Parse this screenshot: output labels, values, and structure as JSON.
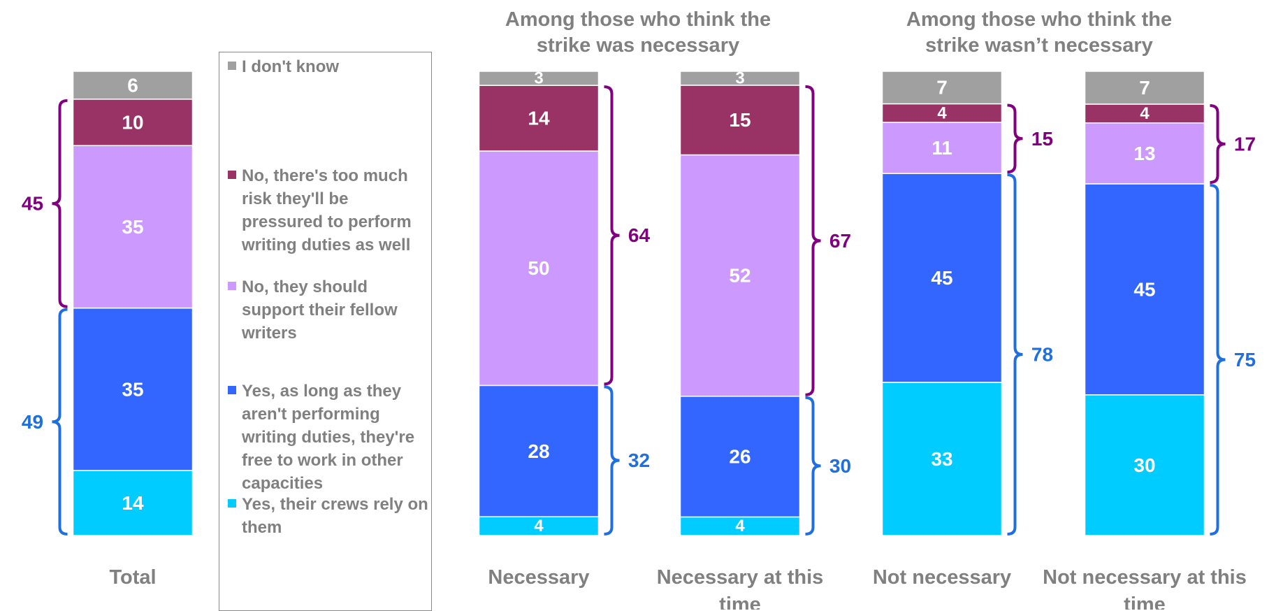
{
  "chart_data": {
    "type": "bar",
    "stacked": true,
    "orientation": "vertical",
    "categories": [
      "Total",
      "Necessary",
      "Necessary at this time",
      "Not necessary",
      "Not necessary at this time"
    ],
    "group_titles": [
      {
        "text": "Among those who think the strike was necessary",
        "lines": [
          "Among those who think the",
          "strike was necessary"
        ]
      },
      {
        "text": "Among those who think the strike wasn’t necessary",
        "lines": [
          "Among those who think the",
          "strike wasn’t necessary"
        ]
      }
    ],
    "series": [
      {
        "name": "Yes, their crews rely on them",
        "color": "#00CCFF",
        "values": [
          14,
          4,
          4,
          33,
          30
        ]
      },
      {
        "name": "Yes, as long as they aren't performing writing duties, they're free to work in other capacities",
        "color": "#3366FF",
        "values": [
          35,
          28,
          26,
          45,
          45
        ]
      },
      {
        "name": "No, they should support their fellow writers",
        "color": "#CC99FF",
        "values": [
          35,
          50,
          52,
          11,
          13
        ]
      },
      {
        "name": "No, there's too much risk they'll be pressured to perform writing duties as well",
        "color": "#993366",
        "values": [
          10,
          14,
          15,
          4,
          4
        ]
      },
      {
        "name": "I don't know",
        "color": "#A0A0A0",
        "values": [
          6,
          3,
          3,
          7,
          7
        ]
      }
    ],
    "brackets": {
      "no_total": {
        "color": "#800080",
        "values": [
          45,
          64,
          67,
          15,
          17
        ]
      },
      "yes_total": {
        "color": "#1F6FE0",
        "values": [
          49,
          32,
          30,
          78,
          75
        ]
      }
    },
    "ylim": [
      0,
      100
    ],
    "legend_position": "left"
  },
  "legend": [
    {
      "label": "I don't know",
      "color": "#A0A0A0"
    },
    {
      "label": "No, there's too much risk they'll be pressured to perform writing duties as well",
      "color": "#993366"
    },
    {
      "label": "No, they should support their fellow writers",
      "color": "#CC99FF"
    },
    {
      "label": "Yes, as long as they aren't performing writing duties, they're free to work in other capacities",
      "color": "#3366FF"
    },
    {
      "label": "Yes, their crews rely on them",
      "color": "#00CCFF"
    }
  ],
  "colors": {
    "label_white": "#FFFFFF",
    "axis_text": "#808080"
  }
}
